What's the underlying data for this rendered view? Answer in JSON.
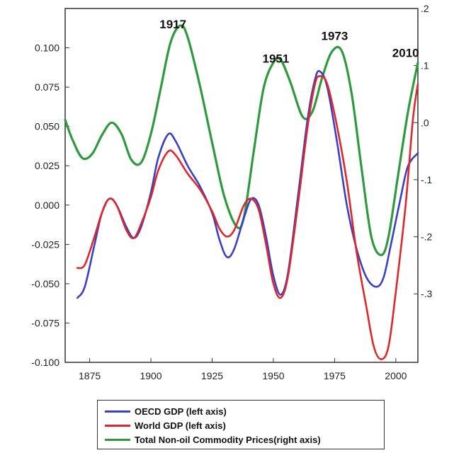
{
  "chart_data": {
    "type": "line",
    "x_range": [
      1865,
      2009
    ],
    "x_ticks": [
      1875,
      1900,
      1925,
      1950,
      1975,
      2000
    ],
    "left_axis": {
      "ylim": [
        -0.1,
        0.125
      ],
      "ticks": [
        -0.1,
        -0.075,
        -0.05,
        -0.025,
        0.0,
        0.025,
        0.05,
        0.075,
        0.1
      ],
      "tick_labels": [
        "-0.100",
        "-0.075",
        "-0.050",
        "-0.025",
        "0.000",
        "0.025",
        "0.050",
        "0.075",
        "0.100"
      ]
    },
    "right_axis": {
      "ylim": [
        -0.42,
        0.2
      ],
      "ticks": [
        0.2,
        0.1,
        0.0,
        -0.1,
        -0.2,
        -0.3
      ],
      "tick_labels": [
        ".2",
        ".1",
        ".0",
        "-.1",
        "-.2",
        "-.3"
      ]
    },
    "series": [
      {
        "name": "OECD GDP (left axis)",
        "axis": "left",
        "color": "#3a3fc8",
        "points": [
          [
            1870,
            -0.059
          ],
          [
            1873,
            -0.052
          ],
          [
            1877,
            -0.025
          ],
          [
            1880,
            -0.005
          ],
          [
            1883,
            0.004
          ],
          [
            1886,
            0.0
          ],
          [
            1890,
            -0.014
          ],
          [
            1893,
            -0.021
          ],
          [
            1896,
            -0.014
          ],
          [
            1900,
            0.008
          ],
          [
            1903,
            0.03
          ],
          [
            1907,
            0.045
          ],
          [
            1910,
            0.041
          ],
          [
            1915,
            0.025
          ],
          [
            1920,
            0.012
          ],
          [
            1925,
            -0.005
          ],
          [
            1928,
            -0.022
          ],
          [
            1931,
            -0.033
          ],
          [
            1934,
            -0.028
          ],
          [
            1938,
            -0.008
          ],
          [
            1941,
            0.004
          ],
          [
            1944,
            0.0
          ],
          [
            1947,
            -0.02
          ],
          [
            1950,
            -0.045
          ],
          [
            1953,
            -0.057
          ],
          [
            1956,
            -0.043
          ],
          [
            1960,
            0.005
          ],
          [
            1964,
            0.055
          ],
          [
            1967,
            0.08
          ],
          [
            1969,
            0.085
          ],
          [
            1972,
            0.075
          ],
          [
            1976,
            0.04
          ],
          [
            1980,
            0.0
          ],
          [
            1984,
            -0.028
          ],
          [
            1988,
            -0.046
          ],
          [
            1992,
            -0.052
          ],
          [
            1995,
            -0.046
          ],
          [
            1998,
            -0.025
          ],
          [
            2002,
            0.005
          ],
          [
            2005,
            0.025
          ],
          [
            2009,
            0.033
          ]
        ]
      },
      {
        "name": "World GDP (left axis)",
        "axis": "left",
        "color": "#e0262b",
        "points": [
          [
            1870,
            -0.04
          ],
          [
            1873,
            -0.038
          ],
          [
            1877,
            -0.02
          ],
          [
            1880,
            -0.005
          ],
          [
            1883,
            0.004
          ],
          [
            1886,
            0.0
          ],
          [
            1890,
            -0.016
          ],
          [
            1893,
            -0.021
          ],
          [
            1896,
            -0.012
          ],
          [
            1900,
            0.005
          ],
          [
            1903,
            0.022
          ],
          [
            1907,
            0.034
          ],
          [
            1910,
            0.032
          ],
          [
            1915,
            0.02
          ],
          [
            1920,
            0.01
          ],
          [
            1925,
            -0.004
          ],
          [
            1928,
            -0.015
          ],
          [
            1931,
            -0.02
          ],
          [
            1934,
            -0.016
          ],
          [
            1938,
            0.0
          ],
          [
            1941,
            0.004
          ],
          [
            1944,
            -0.003
          ],
          [
            1947,
            -0.025
          ],
          [
            1950,
            -0.05
          ],
          [
            1953,
            -0.059
          ],
          [
            1956,
            -0.045
          ],
          [
            1960,
            0.0
          ],
          [
            1964,
            0.05
          ],
          [
            1967,
            0.077
          ],
          [
            1969,
            0.082
          ],
          [
            1972,
            0.077
          ],
          [
            1976,
            0.05
          ],
          [
            1980,
            0.015
          ],
          [
            1984,
            -0.03
          ],
          [
            1988,
            -0.065
          ],
          [
            1991,
            -0.09
          ],
          [
            1994,
            -0.098
          ],
          [
            1997,
            -0.09
          ],
          [
            2000,
            -0.055
          ],
          [
            2004,
            0.0
          ],
          [
            2007,
            0.055
          ],
          [
            2009,
            0.077
          ]
        ]
      },
      {
        "name": "Total Non-oil Commodity Prices(right axis)",
        "axis": "right",
        "color": "#2e9a3e",
        "points": [
          [
            1865,
            0.005
          ],
          [
            1868,
            -0.03
          ],
          [
            1872,
            -0.062
          ],
          [
            1876,
            -0.055
          ],
          [
            1880,
            -0.022
          ],
          [
            1884,
            0.0
          ],
          [
            1888,
            -0.02
          ],
          [
            1892,
            -0.065
          ],
          [
            1896,
            -0.07
          ],
          [
            1900,
            -0.02
          ],
          [
            1904,
            0.06
          ],
          [
            1908,
            0.14
          ],
          [
            1912,
            0.17
          ],
          [
            1915,
            0.15
          ],
          [
            1920,
            0.065
          ],
          [
            1925,
            -0.035
          ],
          [
            1930,
            -0.13
          ],
          [
            1935,
            -0.182
          ],
          [
            1938,
            -0.165
          ],
          [
            1942,
            -0.05
          ],
          [
            1946,
            0.06
          ],
          [
            1950,
            0.105
          ],
          [
            1953,
            0.11
          ],
          [
            1957,
            0.07
          ],
          [
            1962,
            0.01
          ],
          [
            1966,
            0.02
          ],
          [
            1970,
            0.08
          ],
          [
            1974,
            0.125
          ],
          [
            1978,
            0.125
          ],
          [
            1982,
            0.05
          ],
          [
            1986,
            -0.08
          ],
          [
            1990,
            -0.2
          ],
          [
            1994,
            -0.232
          ],
          [
            1997,
            -0.2
          ],
          [
            2001,
            -0.09
          ],
          [
            2005,
            0.02
          ],
          [
            2009,
            0.105
          ]
        ]
      }
    ],
    "annotations": [
      {
        "text": "1917",
        "x": 1909,
        "axis": "right",
        "y": 0.165
      },
      {
        "text": "1951",
        "x": 1951,
        "axis": "right",
        "y": 0.105
      },
      {
        "text": "1973",
        "x": 1975,
        "axis": "right",
        "y": 0.145
      },
      {
        "text": "2010",
        "x": 2004,
        "axis": "right",
        "y": 0.115
      }
    ],
    "legend": {
      "placement": "bottom",
      "entries": [
        {
          "label": "OECD GDP (left axis)",
          "color": "#3a3fc8"
        },
        {
          "label": "World GDP (left axis)",
          "color": "#e0262b"
        },
        {
          "label": "Total Non-oil Commodity Prices(right axis)",
          "color": "#2e9a3e"
        }
      ]
    },
    "grid": false
  }
}
